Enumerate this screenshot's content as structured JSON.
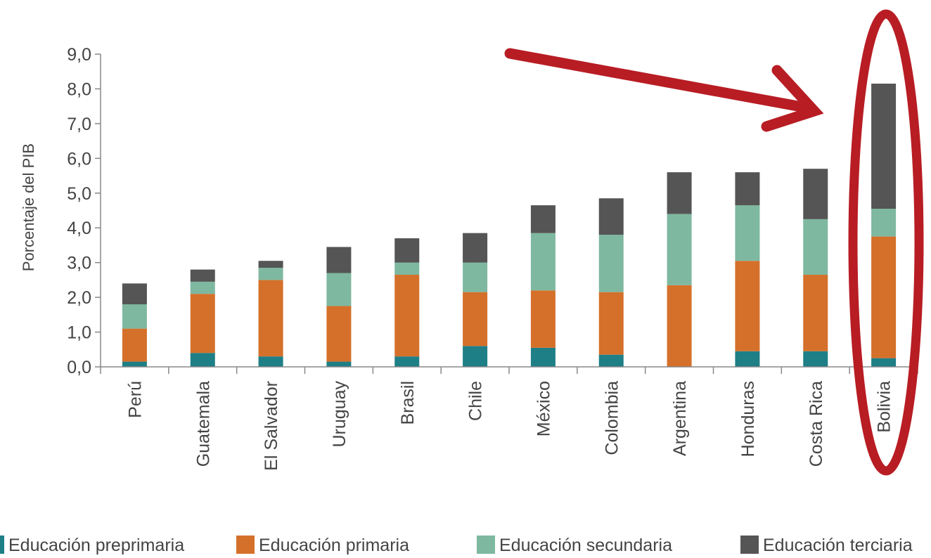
{
  "chart_data": {
    "type": "bar",
    "stacked": true,
    "title": "",
    "xlabel": "",
    "ylabel": "Porcentaje del PIB",
    "ylim": [
      0,
      9
    ],
    "yticks": [
      "0,0",
      "1,0",
      "2,0",
      "3,0",
      "4,0",
      "5,0",
      "6,0",
      "7,0",
      "8,0",
      "9,0"
    ],
    "grid": false,
    "legend_position": "bottom",
    "categories": [
      "Perú",
      "Guatemala",
      "El Salvador",
      "Uruguay",
      "Brasil",
      "Chile",
      "México",
      "Colombia",
      "Argentina",
      "Honduras",
      "Costa Rica",
      "Bolivia"
    ],
    "series": [
      {
        "name": "Educación preprimaria",
        "color": "#1f7f86",
        "values": [
          0.15,
          0.4,
          0.3,
          0.15,
          0.3,
          0.6,
          0.55,
          0.35,
          0.0,
          0.45,
          0.45,
          0.25
        ]
      },
      {
        "name": "Educación primaria",
        "color": "#d5702a",
        "values": [
          0.95,
          1.7,
          2.2,
          1.6,
          2.35,
          1.55,
          1.65,
          1.8,
          2.35,
          2.6,
          2.2,
          3.5
        ]
      },
      {
        "name": "Educación secundaria",
        "color": "#7eb8a0",
        "values": [
          0.7,
          0.35,
          0.35,
          0.95,
          0.35,
          0.85,
          1.65,
          1.65,
          2.05,
          1.6,
          1.6,
          0.8
        ]
      },
      {
        "name": "Educación terciaria",
        "color": "#555555",
        "values": [
          0.6,
          0.35,
          0.2,
          0.75,
          0.7,
          0.85,
          0.8,
          1.05,
          1.2,
          0.95,
          1.45,
          3.6
        ]
      }
    ],
    "annotations": [
      {
        "type": "arrow",
        "target": "Bolivia",
        "color": "#b81d24"
      },
      {
        "type": "ellipse",
        "target": "Bolivia",
        "color": "#b81d24"
      }
    ]
  }
}
